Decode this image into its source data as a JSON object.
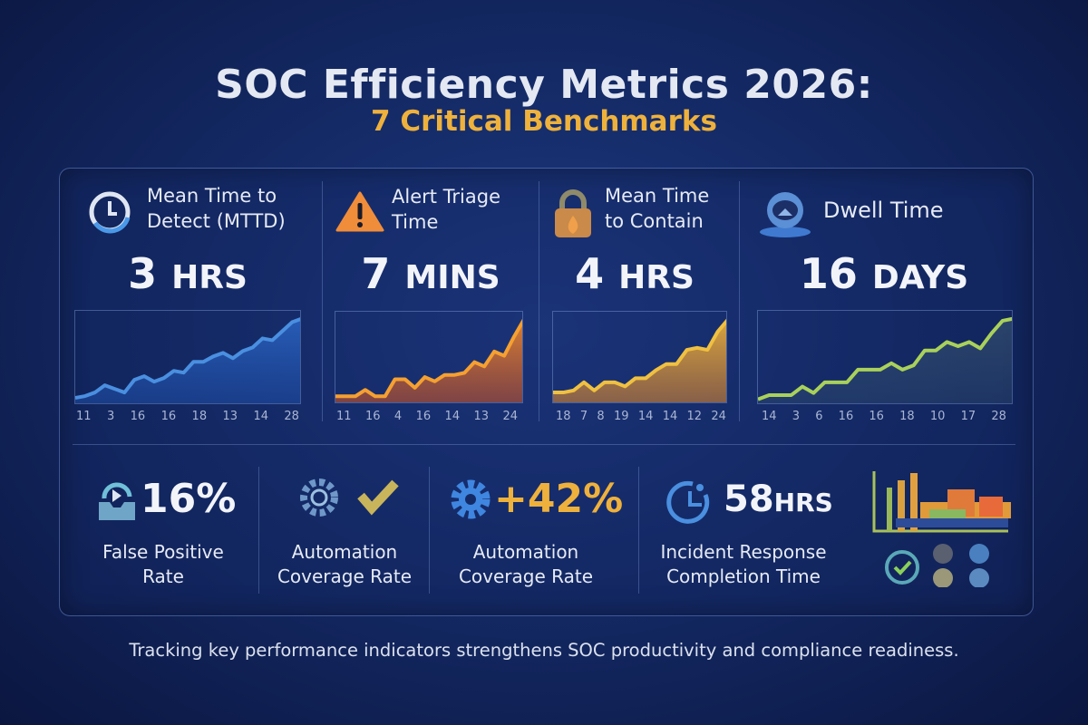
{
  "title": "SOC Efficiency Metrics 2026:",
  "subtitle": "7 Critical Benchmarks",
  "colors": {
    "accent": "#eeb13c",
    "blue": "#4a8fe0",
    "orange": "#f08a2c",
    "amber": "#f0b43a",
    "green": "#a9d15a"
  },
  "metrics": [
    {
      "icon": "clock-icon",
      "label_1": "Mean Time to",
      "label_2": "Detect (MTTD)",
      "value": "3",
      "unit": "HRS",
      "ticks": [
        "11",
        "3",
        "16",
        "16",
        "18",
        "13",
        "14",
        "28"
      ],
      "trend": [
        2,
        3,
        5,
        9,
        7,
        5,
        12,
        14,
        11,
        13,
        17,
        16,
        22,
        22,
        25,
        27,
        24,
        28,
        30,
        35,
        34,
        39,
        44,
        46
      ]
    },
    {
      "icon": "warning-icon",
      "label_1": "Alert Triage",
      "label_2": "Time",
      "value": "7",
      "unit": "MINS",
      "ticks": [
        "11",
        "16",
        "4",
        "16",
        "14",
        "13",
        "24"
      ],
      "trend": [
        2,
        2,
        2,
        5,
        2,
        2,
        10,
        10,
        6,
        11,
        9,
        12,
        12,
        13,
        18,
        16,
        23,
        21,
        30,
        38
      ]
    },
    {
      "icon": "lock-icon",
      "label_1": "Mean Time",
      "label_2": "to Contain",
      "value": "4",
      "unit": "HRS",
      "ticks": [
        "18",
        "7",
        "8",
        "19",
        "14",
        "14",
        "12",
        "24"
      ],
      "trend": [
        4,
        4,
        5,
        9,
        5,
        9,
        9,
        7,
        11,
        11,
        15,
        18,
        18,
        25,
        26,
        25,
        34,
        40
      ]
    },
    {
      "icon": "hacker-icon",
      "label_1": "Dwell Time",
      "label_2": "",
      "value": "16",
      "unit": "DAYS",
      "ticks": [
        "14",
        "3",
        "6",
        "16",
        "16",
        "18",
        "10",
        "17",
        "28"
      ],
      "trend": [
        1,
        3,
        3,
        3,
        7,
        4,
        9,
        9,
        9,
        15,
        15,
        15,
        18,
        15,
        17,
        24,
        24,
        28,
        26,
        28,
        25,
        32,
        38,
        39
      ]
    }
  ],
  "bottom": [
    {
      "icon": "inbox-refresh-icon",
      "value": "16%",
      "label_1": "False Positive",
      "label_2": "Rate"
    },
    {
      "icon": "gear-head-check-icon",
      "value": "",
      "label_1": "Automation",
      "label_2": "Coverage Rate"
    },
    {
      "icon": "gear-icon",
      "value": "+42%",
      "label_1": "Automation",
      "label_2": "Coverage Rate"
    },
    {
      "icon": "timer-icon",
      "value": "58",
      "unit": "HRS",
      "label_1": "Incident Response",
      "label_2": "Completion Time"
    }
  ],
  "footer": "Tracking key performance indicators strengthens SOC productivity and compliance readiness."
}
